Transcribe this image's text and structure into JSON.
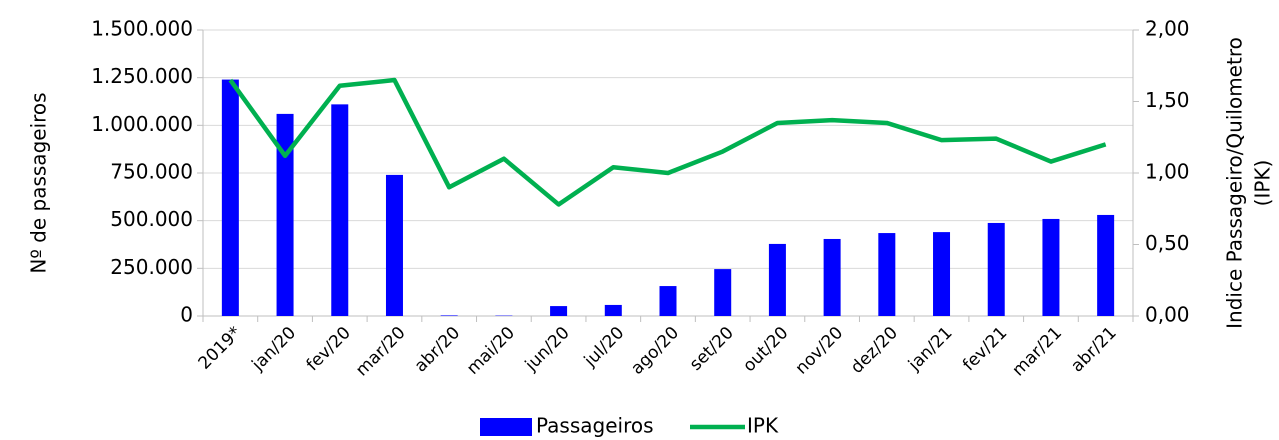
{
  "chart_data": {
    "type": "bar_line",
    "ylabel": "Nº de passageiros",
    "y2label": [
      "Indice Passageiro/Quilometro",
      "(IPK)"
    ],
    "categories": [
      "2019*",
      "jan/20",
      "fev/20",
      "mar/20",
      "abr/20",
      "mai/20",
      "jun/20",
      "jul/20",
      "ago/20",
      "set/20",
      "out/20",
      "nov/20",
      "dez/20",
      "jan/21",
      "fev/21",
      "mar/21",
      "abr/21"
    ],
    "series": [
      {
        "name": "Passageiros",
        "type": "bar",
        "color": "#0000ff",
        "values": [
          1240000,
          1060000,
          1110000,
          740000,
          3000,
          2000,
          52000,
          58000,
          157000,
          246000,
          378000,
          404000,
          435000,
          440000,
          488000,
          509000,
          530000
        ]
      },
      {
        "name": "IPK",
        "type": "line",
        "axis": "y2",
        "color": "#00b050",
        "values": [
          1.65,
          1.12,
          1.61,
          1.65,
          0.9,
          1.1,
          0.78,
          1.04,
          1.0,
          1.15,
          1.35,
          1.37,
          1.35,
          1.23,
          1.24,
          1.08,
          1.2
        ]
      }
    ],
    "ylim": [
      0,
      1500000
    ],
    "yticks": [
      0,
      {
        "value": 250000,
        "label": "250.000"
      },
      {
        "value": 500000,
        "label": "500.000"
      },
      {
        "value": 750000,
        "label": "750.000"
      },
      {
        "value": 1000000,
        "label": "1.000.000"
      },
      {
        "value": 1250000,
        "label": "1.250.000"
      },
      {
        "value": 1500000,
        "label": "1.500.000"
      }
    ],
    "y2lim": [
      0,
      2
    ],
    "y2ticks": [
      {
        "value": 0,
        "label": "0,00"
      },
      {
        "value": 0.5,
        "label": "0,50"
      },
      {
        "value": 1,
        "label": "1,00"
      },
      {
        "value": 1.5,
        "label": "1,50"
      },
      {
        "value": 2,
        "label": "2,00"
      }
    ],
    "grid": true,
    "legend": "bottom"
  }
}
